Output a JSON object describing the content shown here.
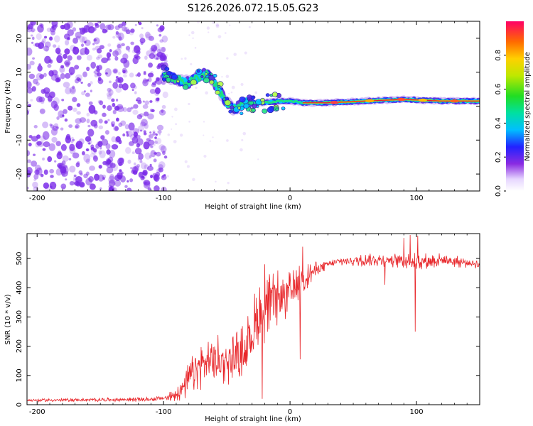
{
  "title": "S126.2026.072.15.05.G23",
  "colors": {
    "snr_line": "#e8262a",
    "scatter": "#7a2ae8",
    "ridge_center": "#e3242b"
  },
  "chart_data": [
    {
      "type": "heatmap",
      "name": "frequency-spectrogram",
      "xlabel": "Height of straight line (km)",
      "ylabel": "Frequency (Hz)",
      "xlim": [
        -208,
        150
      ],
      "ylim": [
        -25,
        25
      ],
      "xticks": [
        -200,
        -100,
        0,
        100
      ],
      "yticks": [
        -20,
        -10,
        0,
        10,
        20
      ],
      "xtick_labels": [
        "-200",
        "-100",
        "0",
        "100"
      ],
      "ytick_labels": [
        "-20",
        "-10",
        "0",
        "10",
        "20"
      ],
      "noise_region_km": [
        -208,
        -100
      ],
      "ridge": {
        "x": [
          -100,
          -90,
          -80,
          -70,
          -65,
          -60,
          -55,
          -50,
          -45,
          -40,
          -35,
          -30,
          -20,
          -10,
          0,
          10,
          30,
          60,
          90,
          120,
          150
        ],
        "y": [
          9,
          8,
          7,
          9,
          10,
          7,
          4,
          1,
          -1,
          0,
          1,
          1,
          1,
          1.5,
          1.5,
          1,
          1,
          1.5,
          2,
          1.5,
          1.5
        ]
      },
      "colorbar": {
        "label": "Normalized spectral amplitude",
        "range": [
          0,
          1
        ],
        "ticks": [
          0.0,
          0.2,
          0.4,
          0.6,
          0.8
        ],
        "tick_labels": [
          "0.0",
          "0.2",
          "0.4",
          "0.6",
          "0.8"
        ]
      }
    },
    {
      "type": "line",
      "name": "snr-trace",
      "xlabel": "Height of straight line (km)",
      "ylabel": "SNR (10 * v/v)",
      "xlim": [
        -208,
        150
      ],
      "ylim": [
        0,
        585
      ],
      "xticks": [
        -200,
        -100,
        0,
        100
      ],
      "yticks": [
        0,
        100,
        200,
        300,
        400,
        500
      ],
      "xtick_labels": [
        "-200",
        "-100",
        "0",
        "100"
      ],
      "ytick_labels": [
        "0",
        "100",
        "200",
        "300",
        "400",
        "500"
      ],
      "envelope": {
        "x": [
          -208,
          -110,
          -95,
          -85,
          -75,
          -65,
          -55,
          -45,
          -35,
          -25,
          -20,
          -10,
          0,
          10,
          20,
          30,
          40,
          60,
          80,
          100,
          120,
          150
        ],
        "y": [
          15,
          18,
          25,
          55,
          120,
          150,
          150,
          160,
          190,
          300,
          330,
          360,
          380,
          430,
          460,
          480,
          490,
          495,
          495,
          490,
          495,
          480
        ]
      },
      "noise_amplitude": [
        [
          -208,
          5
        ],
        [
          -100,
          8
        ],
        [
          -90,
          30
        ],
        [
          -75,
          80
        ],
        [
          -60,
          90
        ],
        [
          -40,
          90
        ],
        [
          -25,
          130
        ],
        [
          -15,
          110
        ],
        [
          0,
          80
        ],
        [
          15,
          40
        ],
        [
          30,
          15
        ],
        [
          80,
          25
        ],
        [
          100,
          30
        ],
        [
          150,
          15
        ]
      ],
      "spikes": [
        {
          "x": 90,
          "y": 570
        },
        {
          "x": 95,
          "y": 580
        },
        {
          "x": 99,
          "y": 250
        },
        {
          "x": 101,
          "y": 578
        },
        {
          "x": 10,
          "y": 540
        },
        {
          "x": -20,
          "y": 480
        },
        {
          "x": -22,
          "y": 20
        },
        {
          "x": 8,
          "y": 155
        },
        {
          "x": 75,
          "y": 410
        }
      ]
    }
  ]
}
